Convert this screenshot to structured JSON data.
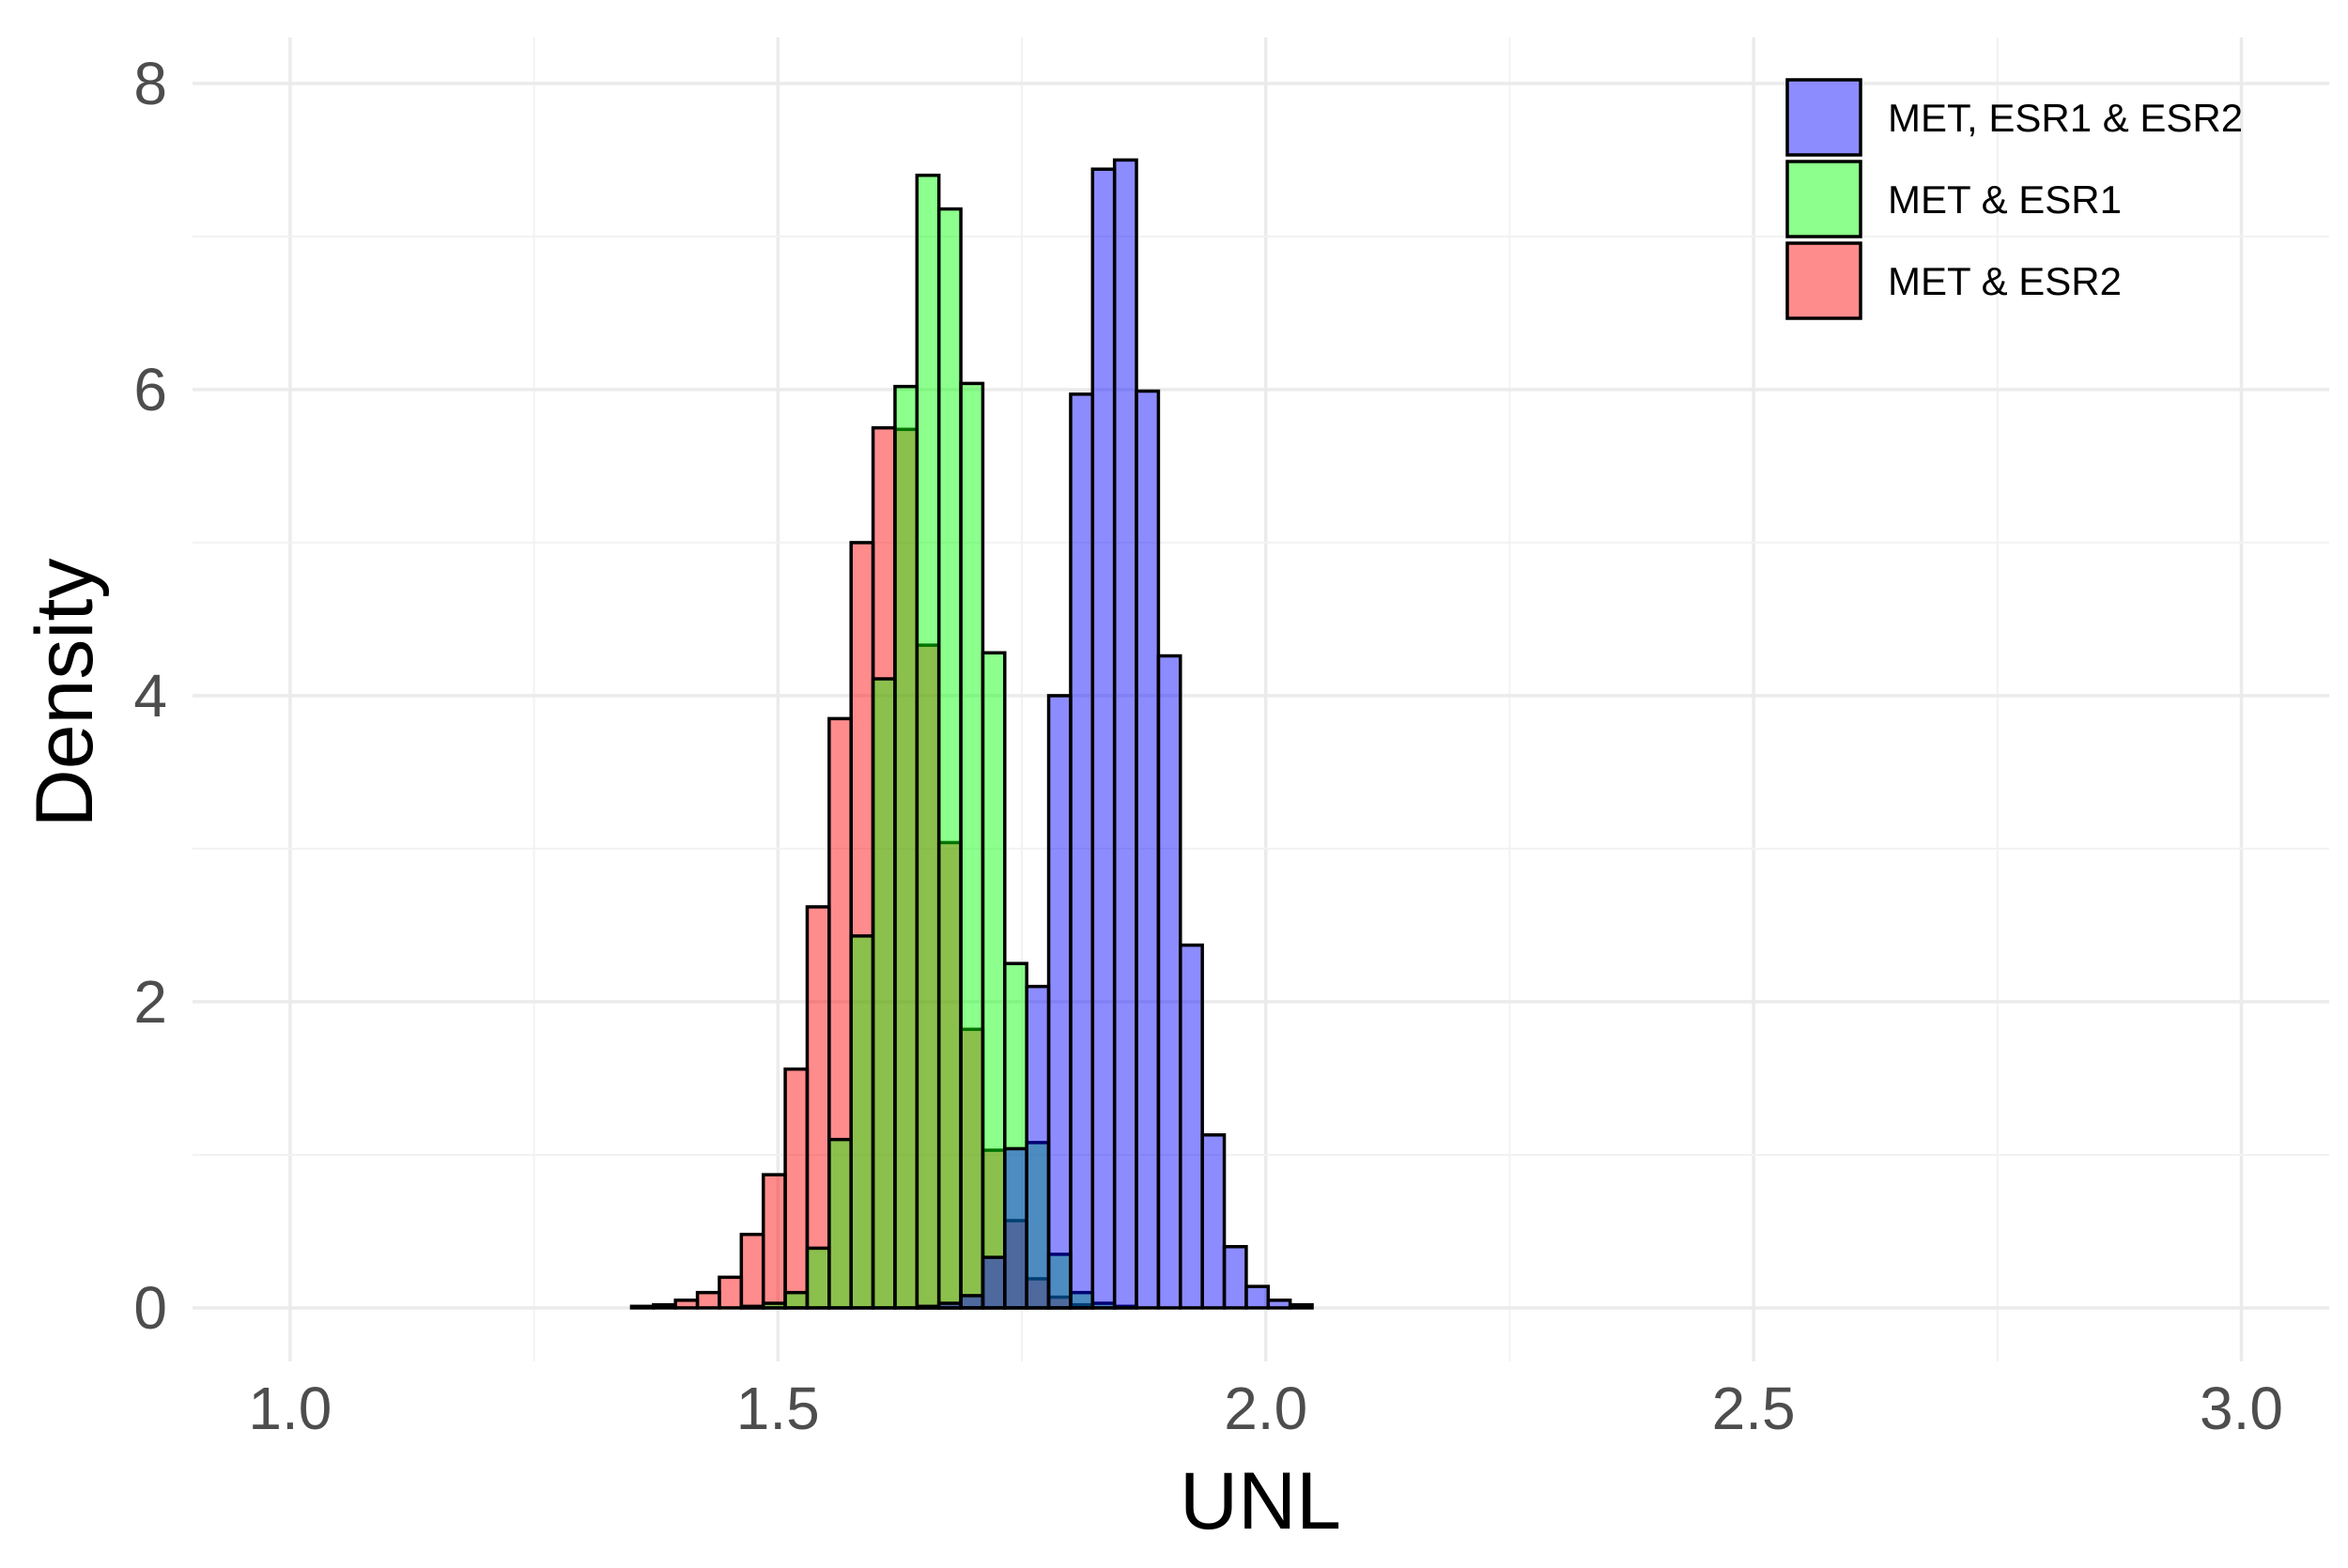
{
  "chart_data": {
    "type": "bar",
    "xlabel": "UNL",
    "ylabel": "Density",
    "xlim": [
      0.9,
      3.09
    ],
    "ylim": [
      -0.35,
      8.3
    ],
    "x_ticks": [
      1.0,
      1.5,
      2.0,
      2.5,
      3.0
    ],
    "x_tick_labels": [
      "1.0",
      "1.5",
      "2.0",
      "2.5",
      "3.0"
    ],
    "y_ticks": [
      0,
      2,
      4,
      6,
      8
    ],
    "y_tick_labels": [
      "0",
      "2",
      "4",
      "6",
      "8"
    ],
    "grid": true,
    "legend_position": "top-right",
    "bin_width": 0.0225,
    "series": [
      {
        "name": "MET & ESR2",
        "color": "#FF0000",
        "bin_start": 1.35,
        "values": [
          0.01,
          0.02,
          0.05,
          0.1,
          0.2,
          0.48,
          0.87,
          1.56,
          2.62,
          3.85,
          5.0,
          5.75,
          5.74,
          4.33,
          3.04,
          1.82,
          1.03,
          0.57,
          0.19,
          0.07,
          0.02
        ]
      },
      {
        "name": "MET & ESR1",
        "color": "#00FF00",
        "bin_start": 1.4625,
        "values": [
          0.01,
          0.03,
          0.1,
          0.39,
          1.1,
          2.43,
          4.11,
          6.02,
          7.4,
          7.18,
          6.04,
          4.28,
          2.25,
          1.08,
          0.35,
          0.1,
          0.03,
          0.01
        ]
      },
      {
        "name": "MET, ESR1 & ESR2",
        "color": "#0000FF",
        "bin_start": 1.6425,
        "values": [
          0.01,
          0.03,
          0.08,
          0.33,
          1.04,
          2.1,
          4.0,
          5.97,
          7.44,
          7.5,
          5.99,
          4.26,
          2.37,
          1.13,
          0.4,
          0.14,
          0.05,
          0.02
        ]
      }
    ]
  }
}
